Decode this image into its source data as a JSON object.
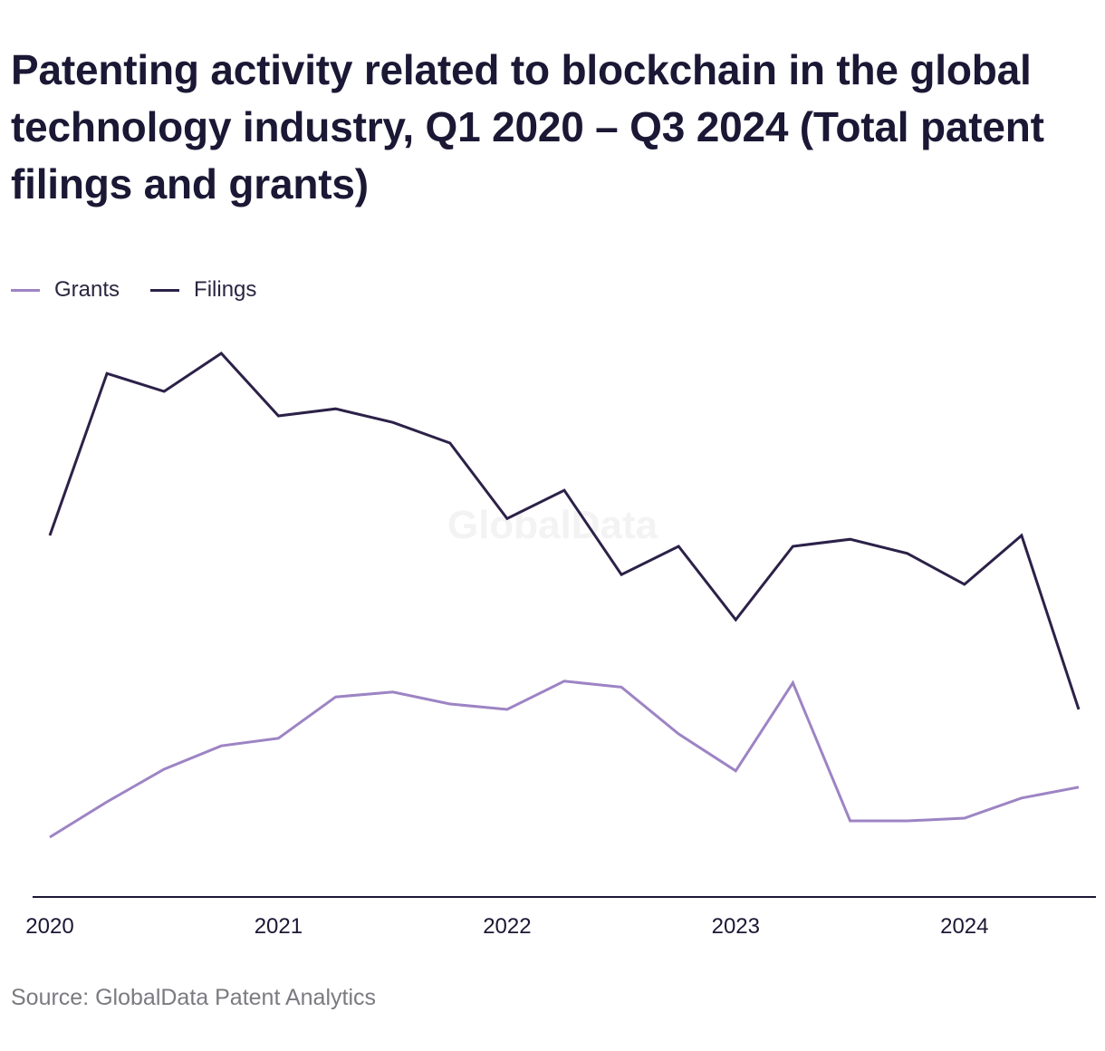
{
  "title": "Patenting activity related to blockchain in the global technology industry, Q1 2020 – Q3 2024 (Total patent filings and grants)",
  "source": "Source: GlobalData Patent Analytics",
  "watermark": "GlobalData",
  "colors": {
    "grants": "#9d84c4",
    "filings": "#2c2148",
    "axis": "#1b1835"
  },
  "chart_data": {
    "type": "line",
    "title": "Patenting activity related to blockchain in the global technology industry, Q1 2020 – Q3 2024 (Total patent filings and grants)",
    "xlabel": "",
    "ylabel": "",
    "x": [
      "Q1 2020",
      "Q2 2020",
      "Q3 2020",
      "Q4 2020",
      "Q1 2021",
      "Q2 2021",
      "Q3 2021",
      "Q4 2021",
      "Q1 2022",
      "Q2 2022",
      "Q3 2022",
      "Q4 2022",
      "Q1 2023",
      "Q2 2023",
      "Q3 2023",
      "Q4 2023",
      "Q1 2024",
      "Q2 2024",
      "Q3 2024"
    ],
    "x_ticks": [
      "2020",
      "2021",
      "2022",
      "2023",
      "2024"
    ],
    "ylim": [
      0,
      1000
    ],
    "grid": false,
    "y_axis_shown": false,
    "legend_position": "top-left",
    "series": [
      {
        "name": "Grants",
        "values": [
          110,
          175,
          235,
          278,
          292,
          368,
          377,
          355,
          345,
          397,
          386,
          300,
          232,
          394,
          140,
          140,
          145,
          182,
          202
        ]
      },
      {
        "name": "Filings",
        "values": [
          665,
          963,
          930,
          1000,
          885,
          898,
          873,
          835,
          696,
          748,
          593,
          645,
          510,
          645,
          658,
          632,
          575,
          665,
          345
        ]
      }
    ]
  }
}
